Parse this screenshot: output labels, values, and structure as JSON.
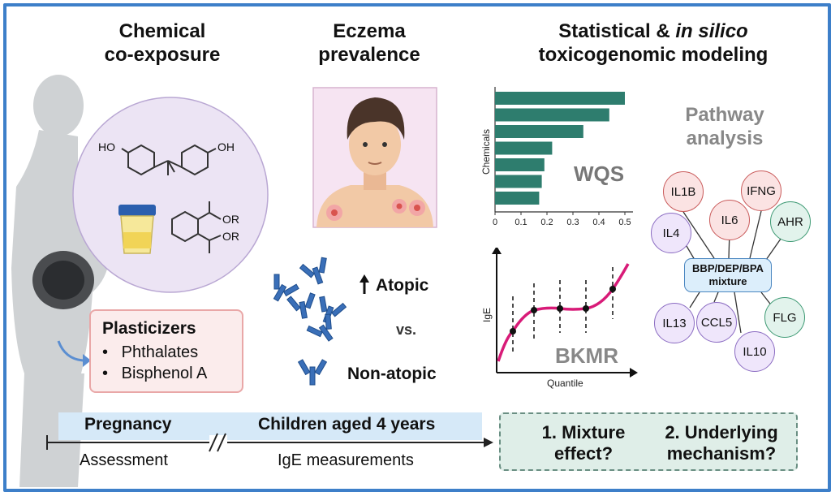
{
  "headers": {
    "col1_line1": "Chemical",
    "col1_line2": "co-exposure",
    "col2_line1": "Eczema",
    "col2_line2": "prevalence",
    "col3_line1_a": "Statistical & ",
    "col3_line1_b": "in silico",
    "col3_line2": "toxicogenomic modeling"
  },
  "plasticizers": {
    "title": "Plasticizers",
    "items": [
      "Phthalates",
      "Bisphenol A"
    ]
  },
  "molecule_labels": {
    "ho_left": "HO",
    "oh_right": "OH",
    "or_top": "OR",
    "or_bottom": "OR"
  },
  "eczema": {
    "atopic": "Atopic",
    "vs": "vs.",
    "non_atopic": "Non-atopic"
  },
  "wqs": {
    "label": "WQS",
    "chart_data": {
      "type": "bar",
      "orientation": "horizontal",
      "ylabel": "Chemicals",
      "values": [
        0.5,
        0.44,
        0.34,
        0.22,
        0.19,
        0.18,
        0.17
      ],
      "xlim": [
        0,
        0.5
      ],
      "xticks": [
        "0",
        "0.1",
        "0.2",
        "0.3",
        "0.4",
        "0.5"
      ],
      "bar_color": "#2e7d6e"
    }
  },
  "bkmr": {
    "label": "BKMR",
    "ylabel": "IgE",
    "xlabel": "Quantile",
    "curve_color": "#d81b78"
  },
  "pathway": {
    "title_line1": "Pathway",
    "title_line2": "analysis",
    "center_line1": "BBP/DEP/BPA",
    "center_line2": "mixture",
    "nodes": {
      "il1b": "IL1B",
      "ifng": "IFNG",
      "il4": "IL4",
      "il6": "IL6",
      "ahr": "AHR",
      "il13": "IL13",
      "ccl5": "CCL5",
      "flg": "FLG",
      "il10": "IL10"
    }
  },
  "timeline": {
    "pregnancy": "Pregnancy",
    "children": "Children aged 4 years",
    "assessment": "Assessment",
    "ige": "IgE measurements"
  },
  "questions": {
    "q1_line1": "1. Mixture",
    "q1_line2": "effect?",
    "q2_line1": "2. Underlying",
    "q2_line2": "mechanism?"
  }
}
